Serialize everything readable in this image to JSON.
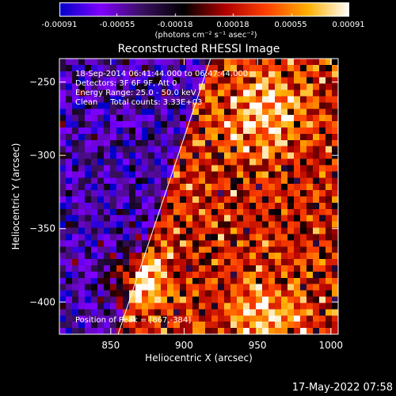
{
  "colorbar": {
    "tick_labels": [
      "-0.00091",
      "-0.00055",
      "-0.00018",
      "0.00018",
      "0.00055",
      "0.00091"
    ],
    "tick_values": [
      -0.00091,
      -0.00055,
      -0.00018,
      0.00018,
      0.00055,
      0.00091
    ],
    "unit_text": "(photons cm⁻² s⁻¹ asec⁻²)",
    "range": [
      -0.00091,
      0.00091
    ],
    "colors": [
      "#0000c8",
      "#8000ff",
      "#3a1060",
      "#000000",
      "#b00000",
      "#ff4000",
      "#ffb000",
      "#ffffff"
    ]
  },
  "chart_data": {
    "type": "heatmap",
    "title": "Reconstructed RHESSI Image",
    "xlabel": "Heliocentric X (arcsec)",
    "ylabel": "Heliocentric Y (arcsec)",
    "xlim": [
      815,
      1005
    ],
    "ylim": [
      -422,
      -234
    ],
    "x_ticks": [
      850,
      900,
      950,
      1000
    ],
    "y_ticks": [
      -250,
      -300,
      -350,
      -400
    ],
    "annotations": {
      "time_range": "18-Sep-2014 06:41:44.000 to 06:47:44.000",
      "detectors": "Detectors: 3F 6F 9F, Att 0",
      "energy": "Energy Range: 25.0 - 50.0 keV",
      "clean": "Clean     Total counts: 3.33E+03",
      "peak": "Position of Peak = [867,-384]"
    },
    "peak_position": [
      867,
      -384
    ],
    "limb_line": {
      "points": [
        [
          855,
          -422
        ],
        [
          918,
          -234
        ]
      ]
    }
  },
  "timestamp": "17-May-2022 07:58"
}
